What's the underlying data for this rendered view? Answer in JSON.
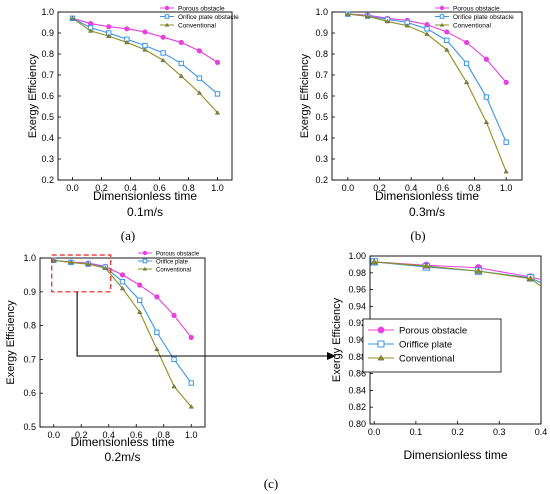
{
  "chart_data": [
    {
      "type": "line",
      "xlabel": "Dimensionless time",
      "ylabel": "Exergy Efficiency",
      "subtitle": "0.1m/s",
      "panel_label": "(a)",
      "xlim": [
        -0.1,
        1.1
      ],
      "ylim": [
        0.2,
        1.0
      ],
      "xticks": [
        "0.0",
        "0.2",
        "0.4",
        "0.6",
        "0.8",
        "1.0"
      ],
      "yticks": [
        "0.2",
        "0.3",
        "0.4",
        "0.5",
        "0.6",
        "0.7",
        "0.8",
        "0.9",
        "1.0"
      ],
      "legend_position": "top-right",
      "series": [
        {
          "name": "Porous obstacle",
          "color": "#e83fe0",
          "marker": "circle",
          "x": [
            0.0,
            0.125,
            0.25,
            0.375,
            0.5,
            0.625,
            0.75,
            0.875,
            1.0
          ],
          "y": [
            0.97,
            0.945,
            0.93,
            0.92,
            0.905,
            0.88,
            0.855,
            0.815,
            0.76
          ]
        },
        {
          "name": "Orifice plate obstacle",
          "color": "#3a96e8",
          "marker": "square",
          "x": [
            0.0,
            0.125,
            0.25,
            0.375,
            0.5,
            0.625,
            0.75,
            0.875,
            1.0
          ],
          "y": [
            0.97,
            0.925,
            0.9,
            0.87,
            0.84,
            0.805,
            0.755,
            0.685,
            0.61
          ]
        },
        {
          "name": "Conventional",
          "color": "#8f8f1e",
          "marker": "triangle",
          "x": [
            0.0,
            0.125,
            0.25,
            0.375,
            0.5,
            0.625,
            0.75,
            0.875,
            1.0
          ],
          "y": [
            0.97,
            0.91,
            0.885,
            0.855,
            0.82,
            0.77,
            0.695,
            0.615,
            0.52
          ]
        }
      ]
    },
    {
      "type": "line",
      "xlabel": "Dimensionless time",
      "ylabel": "Exergy Efficiency",
      "subtitle": "0.3m/s",
      "panel_label": "(b)",
      "xlim": [
        -0.1,
        1.1
      ],
      "ylim": [
        0.2,
        1.0
      ],
      "xticks": [
        "0.0",
        "0.2",
        "0.4",
        "0.6",
        "0.8",
        "1.0"
      ],
      "yticks": [
        "0.2",
        "0.3",
        "0.4",
        "0.5",
        "0.6",
        "0.7",
        "0.8",
        "0.9",
        "1.0"
      ],
      "legend_position": "top-right",
      "series": [
        {
          "name": "Porous obstacle",
          "color": "#e83fe0",
          "marker": "circle",
          "x": [
            0.0,
            0.125,
            0.25,
            0.375,
            0.5,
            0.625,
            0.75,
            0.875,
            1.0
          ],
          "y": [
            0.99,
            0.985,
            0.97,
            0.96,
            0.94,
            0.905,
            0.855,
            0.775,
            0.665
          ]
        },
        {
          "name": "Orifice plate obstacle",
          "color": "#3a96e8",
          "marker": "square",
          "x": [
            0.0,
            0.125,
            0.25,
            0.375,
            0.5,
            0.625,
            0.75,
            0.875,
            1.0
          ],
          "y": [
            0.99,
            0.98,
            0.965,
            0.95,
            0.92,
            0.865,
            0.755,
            0.595,
            0.38
          ]
        },
        {
          "name": "Conventional",
          "color": "#8f8f1e",
          "marker": "triangle",
          "x": [
            0.0,
            0.125,
            0.25,
            0.375,
            0.5,
            0.625,
            0.75,
            0.875,
            1.0
          ],
          "y": [
            0.99,
            0.98,
            0.955,
            0.935,
            0.895,
            0.82,
            0.665,
            0.475,
            0.24
          ]
        }
      ]
    },
    {
      "type": "line",
      "xlabel": "Dimensionless time",
      "ylabel": "Exergy Efficiency",
      "subtitle": "0.2m/s",
      "panel_label": "(c)",
      "xlim": [
        -0.1,
        1.1
      ],
      "ylim": [
        0.5,
        1.0
      ],
      "xticks": [
        "0.0",
        "0.2",
        "0.4",
        "0.6",
        "0.8",
        "1.0"
      ],
      "yticks": [
        "0.5",
        "0.6",
        "0.7",
        "0.8",
        "0.9",
        "1.0"
      ],
      "legend_position": "top-right",
      "highlight_box": {
        "x": [
          0.0,
          0.4
        ],
        "y": [
          0.9,
          1.0
        ]
      },
      "series": [
        {
          "name": "Porous obstacle",
          "color": "#e83fe0",
          "marker": "circle",
          "x": [
            0.0,
            0.125,
            0.25,
            0.375,
            0.5,
            0.625,
            0.75,
            0.875,
            1.0
          ],
          "y": [
            0.993,
            0.988,
            0.985,
            0.975,
            0.95,
            0.92,
            0.885,
            0.83,
            0.765
          ]
        },
        {
          "name": "Orifice plate",
          "color": "#3a96e8",
          "marker": "square",
          "x": [
            0.0,
            0.125,
            0.25,
            0.375,
            0.5,
            0.625,
            0.75,
            0.875,
            1.0
          ],
          "y": [
            0.993,
            0.987,
            0.982,
            0.973,
            0.93,
            0.875,
            0.78,
            0.7,
            0.63
          ]
        },
        {
          "name": "Conventional",
          "color": "#8f8f1e",
          "marker": "triangle",
          "x": [
            0.0,
            0.125,
            0.25,
            0.375,
            0.5,
            0.625,
            0.75,
            0.875,
            1.0
          ],
          "y": [
            0.993,
            0.987,
            0.982,
            0.97,
            0.91,
            0.84,
            0.73,
            0.62,
            0.56
          ]
        }
      ]
    },
    {
      "type": "line",
      "xlabel": "Dimensionless time",
      "ylabel": "Exergy Efficiency",
      "xlim": [
        -0.01,
        0.4
      ],
      "ylim": [
        0.8,
        1.0
      ],
      "xticks": [
        "0.0",
        "0.1",
        "0.2",
        "0.3",
        "0.4"
      ],
      "yticks": [
        "0.80",
        "0.82",
        "0.84",
        "0.86",
        "0.88",
        "0.90",
        "0.92",
        "0.94",
        "0.96",
        "0.98",
        "1.00"
      ],
      "legend_position": "middle-left",
      "series": [
        {
          "name": "Porous obstacle",
          "color": "#e83fe0",
          "marker": "circle",
          "x": [
            0.0,
            0.125,
            0.25,
            0.375,
            0.4
          ],
          "y": [
            0.993,
            0.989,
            0.986,
            0.975,
            0.972
          ]
        },
        {
          "name": "Oriffice plate",
          "color": "#3a96e8",
          "marker": "square",
          "x": [
            0.0,
            0.125,
            0.25,
            0.375,
            0.4
          ],
          "y": [
            0.993,
            0.987,
            0.982,
            0.974,
            0.968
          ]
        },
        {
          "name": "Conventional",
          "color": "#8f8f1e",
          "marker": "triangle",
          "x": [
            0.0,
            0.125,
            0.25,
            0.375,
            0.4
          ],
          "y": [
            0.993,
            0.988,
            0.982,
            0.973,
            0.964
          ]
        }
      ]
    }
  ]
}
